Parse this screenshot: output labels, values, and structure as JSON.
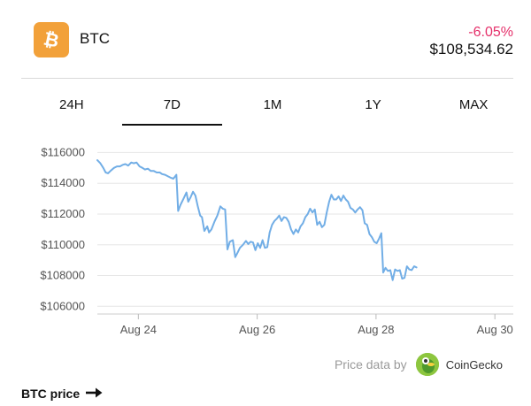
{
  "header": {
    "coin_name": "BTC",
    "change": "-6.05%",
    "price": "$108,534.62",
    "logo_icon": "bitcoin-icon",
    "accent": "#f2a13a",
    "change_color": "#e5306a"
  },
  "tabs": [
    {
      "label": "24H",
      "active": false
    },
    {
      "label": "7D",
      "active": true
    },
    {
      "label": "1M",
      "active": false
    },
    {
      "label": "1Y",
      "active": false
    },
    {
      "label": "MAX",
      "active": false
    }
  ],
  "chart_data": {
    "type": "line",
    "title": "",
    "xlabel": "",
    "ylabel": "",
    "ylim": [
      105500,
      116600
    ],
    "y_ticks": [
      "$116000",
      "$114000",
      "$112000",
      "$110000",
      "$108000",
      "$106000"
    ],
    "y_tick_values": [
      116000,
      114000,
      112000,
      110000,
      108000,
      106000
    ],
    "x_ticks": [
      "Aug 24",
      "Aug 26",
      "Aug 28",
      "Aug 30"
    ],
    "x_tick_values": [
      0.69,
      2.69,
      4.69,
      6.69
    ],
    "xlim": [
      0,
      7
    ],
    "grid": "horizontal",
    "line_color": "#72aee6",
    "series": [
      {
        "values": [
          [
            0.0,
            115500
          ],
          [
            0.05,
            115300
          ],
          [
            0.1,
            115000
          ],
          [
            0.14,
            114700
          ],
          [
            0.18,
            114650
          ],
          [
            0.22,
            114800
          ],
          [
            0.28,
            115000
          ],
          [
            0.33,
            115100
          ],
          [
            0.38,
            115100
          ],
          [
            0.43,
            115200
          ],
          [
            0.47,
            115250
          ],
          [
            0.52,
            115150
          ],
          [
            0.57,
            115350
          ],
          [
            0.61,
            115300
          ],
          [
            0.66,
            115350
          ],
          [
            0.71,
            115100
          ],
          [
            0.76,
            115000
          ],
          [
            0.8,
            114900
          ],
          [
            0.85,
            114950
          ],
          [
            0.9,
            114800
          ],
          [
            0.95,
            114800
          ],
          [
            1.0,
            114700
          ],
          [
            1.05,
            114700
          ],
          [
            1.09,
            114600
          ],
          [
            1.14,
            114550
          ],
          [
            1.19,
            114450
          ],
          [
            1.24,
            114350
          ],
          [
            1.28,
            114300
          ],
          [
            1.33,
            114550
          ],
          [
            1.36,
            112200
          ],
          [
            1.4,
            112600
          ],
          [
            1.45,
            113000
          ],
          [
            1.5,
            113400
          ],
          [
            1.53,
            112800
          ],
          [
            1.57,
            113100
          ],
          [
            1.61,
            113450
          ],
          [
            1.65,
            113200
          ],
          [
            1.69,
            112500
          ],
          [
            1.73,
            111900
          ],
          [
            1.76,
            111800
          ],
          [
            1.8,
            110900
          ],
          [
            1.85,
            111200
          ],
          [
            1.88,
            110800
          ],
          [
            1.92,
            111000
          ],
          [
            1.97,
            111500
          ],
          [
            2.02,
            111900
          ],
          [
            2.07,
            112500
          ],
          [
            2.11,
            112350
          ],
          [
            2.15,
            112300
          ],
          [
            2.19,
            109700
          ],
          [
            2.23,
            110200
          ],
          [
            2.28,
            110300
          ],
          [
            2.32,
            109200
          ],
          [
            2.36,
            109500
          ],
          [
            2.4,
            109800
          ],
          [
            2.45,
            110000
          ],
          [
            2.5,
            110250
          ],
          [
            2.54,
            110050
          ],
          [
            2.58,
            110200
          ],
          [
            2.62,
            110150
          ],
          [
            2.66,
            109650
          ],
          [
            2.7,
            110100
          ],
          [
            2.74,
            109800
          ],
          [
            2.78,
            110300
          ],
          [
            2.82,
            109800
          ],
          [
            2.86,
            109850
          ],
          [
            2.9,
            110800
          ],
          [
            2.94,
            111300
          ],
          [
            2.98,
            111550
          ],
          [
            3.02,
            111700
          ],
          [
            3.06,
            111900
          ],
          [
            3.1,
            111550
          ],
          [
            3.14,
            111800
          ],
          [
            3.18,
            111750
          ],
          [
            3.22,
            111500
          ],
          [
            3.26,
            111000
          ],
          [
            3.3,
            110700
          ],
          [
            3.34,
            111000
          ],
          [
            3.38,
            110800
          ],
          [
            3.42,
            111200
          ],
          [
            3.46,
            111400
          ],
          [
            3.5,
            111800
          ],
          [
            3.54,
            112000
          ],
          [
            3.58,
            112350
          ],
          [
            3.62,
            112100
          ],
          [
            3.66,
            112300
          ],
          [
            3.7,
            111300
          ],
          [
            3.74,
            111500
          ],
          [
            3.78,
            111150
          ],
          [
            3.82,
            111300
          ],
          [
            3.86,
            112100
          ],
          [
            3.9,
            112800
          ],
          [
            3.94,
            113250
          ],
          [
            3.98,
            112950
          ],
          [
            4.02,
            112950
          ],
          [
            4.06,
            113150
          ],
          [
            4.1,
            112850
          ],
          [
            4.14,
            113200
          ],
          [
            4.18,
            112950
          ],
          [
            4.22,
            112800
          ],
          [
            4.26,
            112400
          ],
          [
            4.3,
            112300
          ],
          [
            4.34,
            112100
          ],
          [
            4.38,
            112300
          ],
          [
            4.42,
            112450
          ],
          [
            4.46,
            112250
          ],
          [
            4.5,
            111400
          ],
          [
            4.54,
            111300
          ],
          [
            4.58,
            110700
          ],
          [
            4.62,
            110500
          ],
          [
            4.66,
            110200
          ],
          [
            4.7,
            110100
          ],
          [
            4.74,
            110400
          ],
          [
            4.78,
            110750
          ],
          [
            4.81,
            108200
          ],
          [
            4.85,
            108500
          ],
          [
            4.89,
            108300
          ],
          [
            4.93,
            108350
          ],
          [
            4.97,
            107700
          ],
          [
            5.01,
            108400
          ],
          [
            5.05,
            108300
          ],
          [
            5.09,
            108350
          ],
          [
            5.13,
            107800
          ],
          [
            5.17,
            107850
          ],
          [
            5.21,
            108600
          ],
          [
            5.25,
            108400
          ],
          [
            5.29,
            108350
          ],
          [
            5.33,
            108600
          ],
          [
            5.37,
            108530
          ]
        ]
      }
    ]
  },
  "attribution": {
    "text": "Price data by",
    "provider": "CoinGecko",
    "logo_icon": "coingecko-icon"
  },
  "footer": {
    "link_label": "BTC price",
    "arrow_icon": "arrow-right-icon"
  }
}
